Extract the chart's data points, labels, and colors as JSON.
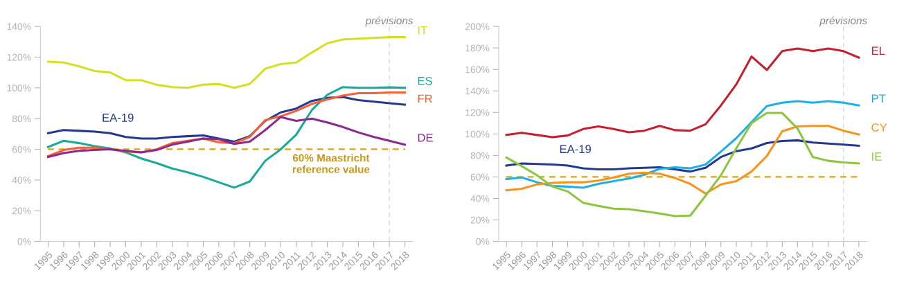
{
  "chart_data": [
    {
      "type": "line",
      "categories": [
        "1995",
        "1996",
        "1997",
        "1998",
        "1999",
        "2000",
        "2001",
        "2002",
        "2003",
        "2004",
        "2005",
        "2006",
        "2007",
        "2008",
        "2009",
        "2010",
        "2011",
        "2012",
        "2013",
        "2014",
        "2015",
        "2016",
        "2017",
        "2018"
      ],
      "ylim": [
        0,
        140
      ],
      "yticks": [
        {
          "value": 0,
          "label": "0%"
        },
        {
          "value": 20,
          "label": "20%"
        },
        {
          "value": 40,
          "label": "40%"
        },
        {
          "value": 60,
          "label": "60%"
        },
        {
          "value": 80,
          "label": "80%"
        },
        {
          "value": 100,
          "label": "100%"
        },
        {
          "value": 120,
          "label": "120%"
        },
        {
          "value": 140,
          "label": "140%"
        }
      ],
      "grid": false,
      "legend": false,
      "marker": "none",
      "line_style": "solid",
      "ref_lines": [
        {
          "axis": "y",
          "value": 60,
          "label": "60% Maastricht\nreference value",
          "color": "#d9a21b",
          "line_style": "dashed"
        },
        {
          "axis": "x",
          "value": "2017",
          "label": "prévisions",
          "color": "#dddddd",
          "line_style": "dashed"
        }
      ],
      "series": [
        {
          "name": "EA-19",
          "color": "#243a8e",
          "values": [
            70.5,
            72.5,
            72,
            71.5,
            70.5,
            68,
            67,
            67,
            68,
            68.5,
            69,
            67,
            65,
            68.5,
            78.5,
            84,
            86.5,
            91.5,
            93.5,
            94,
            92,
            91,
            90,
            89
          ]
        },
        {
          "name": "IT",
          "color": "#d7df23",
          "values": [
            117,
            116.5,
            114,
            111,
            110,
            105,
            105,
            102,
            100.5,
            100,
            102,
            102.5,
            100,
            102.5,
            112.5,
            115.5,
            116.5,
            123,
            129,
            131.5,
            132,
            132.5,
            133,
            133
          ]
        },
        {
          "name": "ES",
          "color": "#1aaa9b",
          "values": [
            61.5,
            65.5,
            64,
            62,
            60.5,
            58,
            54,
            51,
            47.5,
            45,
            42,
            38.5,
            35,
            39,
            52.5,
            60,
            69.5,
            85.5,
            95.5,
            100.5,
            100,
            100,
            100.3,
            100
          ]
        },
        {
          "name": "FR",
          "color": "#f4623a",
          "values": [
            55.5,
            59.5,
            61,
            61,
            60,
            58.5,
            58,
            60,
            64,
            65.5,
            67,
            64.5,
            64,
            68,
            79,
            81.5,
            85,
            89.5,
            92.5,
            95,
            96.5,
            96.5,
            97,
            97
          ]
        },
        {
          "name": "DE",
          "color": "#8b2a8f",
          "values": [
            55,
            57.5,
            59,
            59.5,
            60,
            59,
            58,
            59.5,
            63,
            65,
            67,
            66.5,
            63.5,
            65,
            72.5,
            81,
            78.5,
            80,
            77.5,
            74.5,
            71,
            68,
            65.5,
            63
          ]
        }
      ]
    },
    {
      "type": "line",
      "categories": [
        "1995",
        "1996",
        "1997",
        "1998",
        "1999",
        "2000",
        "2001",
        "2002",
        "2003",
        "2004",
        "2005",
        "2006",
        "2007",
        "2008",
        "2009",
        "2010",
        "2011",
        "2012",
        "2013",
        "2014",
        "2015",
        "2016",
        "2017",
        "2018"
      ],
      "ylim": [
        0,
        200
      ],
      "yticks": [
        {
          "value": 0,
          "label": "0%"
        },
        {
          "value": 20,
          "label": "20%"
        },
        {
          "value": 40,
          "label": "40%"
        },
        {
          "value": 60,
          "label": "60%"
        },
        {
          "value": 80,
          "label": "80%"
        },
        {
          "value": 100,
          "label": "100%"
        },
        {
          "value": 120,
          "label": "120%"
        },
        {
          "value": 140,
          "label": "140%"
        },
        {
          "value": 160,
          "label": "160%"
        },
        {
          "value": 180,
          "label": "180%"
        },
        {
          "value": 200,
          "label": "200%"
        }
      ],
      "grid": false,
      "legend": false,
      "marker": "none",
      "line_style": "solid",
      "ref_lines": [
        {
          "axis": "y",
          "value": 60,
          "color": "#d9a21b",
          "line_style": "dashed"
        },
        {
          "axis": "x",
          "value": "2017",
          "label": "prévisions",
          "color": "#dddddd",
          "line_style": "dashed"
        }
      ],
      "series": [
        {
          "name": "EA-19",
          "color": "#243a8e",
          "values": [
            70.5,
            72.5,
            72,
            71.5,
            70.5,
            68,
            67,
            67,
            68,
            68.5,
            69,
            67,
            65,
            68.5,
            78.5,
            84,
            86.5,
            91.5,
            93.5,
            94,
            92,
            91,
            90,
            89
          ]
        },
        {
          "name": "EL",
          "color": "#c4202f",
          "values": [
            99,
            101,
            99,
            97,
            98.5,
            104.5,
            107,
            104.5,
            101.5,
            103,
            107.5,
            103.5,
            103,
            109,
            126.5,
            146,
            172,
            159.5,
            177,
            179.5,
            177,
            179.5,
            177,
            171
          ]
        },
        {
          "name": "PT",
          "color": "#1bb1e7",
          "values": [
            58,
            59.5,
            55,
            51.5,
            51,
            50,
            53.5,
            56,
            58.5,
            62,
            67.5,
            69,
            68,
            71.5,
            83.5,
            96,
            111,
            126,
            129,
            130.5,
            129,
            130.5,
            129,
            126.5
          ]
        },
        {
          "name": "CY",
          "color": "#f7941d",
          "values": [
            47.5,
            49,
            53,
            54.5,
            55,
            55,
            56.5,
            59.5,
            63,
            64,
            63,
            59,
            53.5,
            44.5,
            53,
            56,
            65,
            79.5,
            102.5,
            107,
            107.5,
            107.5,
            103,
            99.5
          ]
        },
        {
          "name": "IE",
          "color": "#8cc63f",
          "values": [
            78,
            70,
            61.5,
            51,
            46.5,
            36,
            33,
            30.5,
            30,
            28,
            26,
            23.5,
            24,
            42.5,
            61.5,
            86.5,
            110,
            119.5,
            119.5,
            105,
            78.5,
            75,
            73.5,
            72.5
          ]
        }
      ]
    }
  ]
}
